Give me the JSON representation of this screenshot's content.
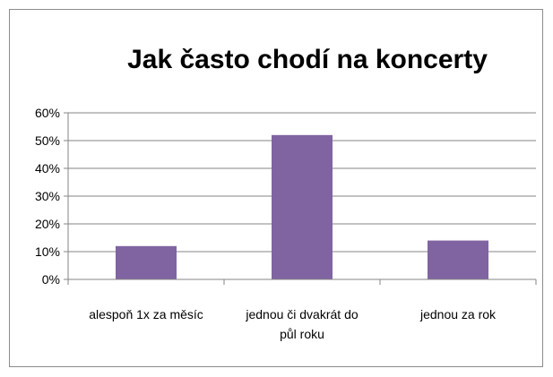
{
  "colors": {
    "bar": "#8064A2",
    "gridline": "#868686",
    "axis": "#868686",
    "frame": "#8c8c8c"
  },
  "chart_data": {
    "type": "bar",
    "title": "Jak často chodí na koncerty",
    "xlabel": "",
    "ylabel": "",
    "categories": [
      [
        "alespoň 1x za měsíc"
      ],
      [
        "jednou či dvakrát do",
        "půl roku"
      ],
      [
        "jednou za rok"
      ]
    ],
    "values": [
      12,
      52,
      14
    ],
    "ylim": [
      0,
      60
    ],
    "yticks": [
      "0%",
      "10%",
      "20%",
      "30%",
      "40%",
      "50%",
      "60%"
    ],
    "ytick_values": [
      0,
      10,
      20,
      30,
      40,
      50,
      60
    ],
    "grid": true,
    "legend": "none"
  }
}
